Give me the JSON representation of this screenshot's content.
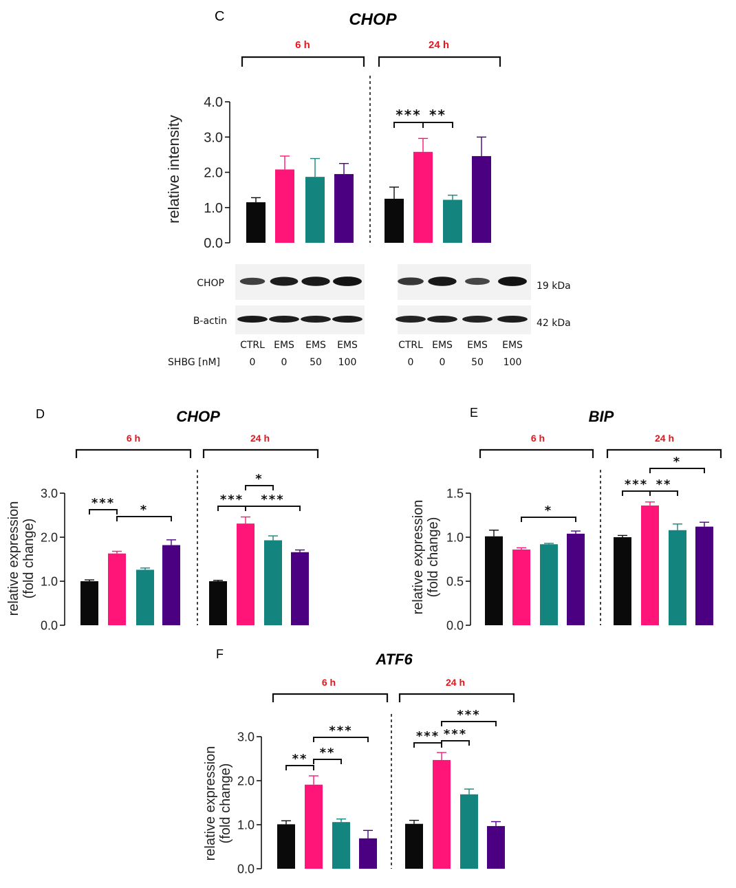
{
  "chart_data": [
    {
      "panel": "C",
      "type": "bar",
      "title": "CHOP",
      "ylabel": "relative intensity",
      "ylim": [
        0,
        4.0
      ],
      "yticks": [
        "0.0",
        "1.0",
        "2.0",
        "3.0",
        "4.0"
      ],
      "groups": [
        {
          "label": "6 h",
          "values": [
            1.15,
            2.08,
            1.87,
            1.95
          ],
          "errors": [
            0.13,
            0.38,
            0.52,
            0.3
          ],
          "colors": [
            "#0a0a0a",
            "#ff1477",
            "#14857e",
            "#4b0082"
          ],
          "significance": []
        },
        {
          "label": "24 h",
          "values": [
            1.25,
            2.58,
            1.22,
            2.46
          ],
          "errors": [
            0.33,
            0.38,
            0.13,
            0.54
          ],
          "colors": [
            "#0a0a0a",
            "#ff1477",
            "#14857e",
            "#4b0082"
          ],
          "significance": [
            {
              "from": 0,
              "to": 1,
              "label": "***"
            },
            {
              "from": 1,
              "to": 2,
              "label": "**"
            }
          ]
        }
      ]
    },
    {
      "panel": "D",
      "type": "bar",
      "title": "CHOP",
      "ylabel": [
        "relative expression",
        "(fold change)"
      ],
      "ylim": [
        0,
        3.0
      ],
      "yticks": [
        "0.0",
        "1.0",
        "2.0",
        "3.0"
      ],
      "groups": [
        {
          "label": "6 h",
          "values": [
            1.0,
            1.63,
            1.26,
            1.82
          ],
          "errors": [
            0.03,
            0.05,
            0.04,
            0.12
          ],
          "colors": [
            "#0a0a0a",
            "#ff1477",
            "#14857e",
            "#4b0082"
          ],
          "significance": [
            {
              "from": 0,
              "to": 1,
              "label": "***"
            },
            {
              "from": 1,
              "to": 3,
              "label": "*"
            }
          ]
        },
        {
          "label": "24 h",
          "values": [
            1.0,
            2.31,
            1.93,
            1.66
          ],
          "errors": [
            0.02,
            0.15,
            0.1,
            0.05
          ],
          "colors": [
            "#0a0a0a",
            "#ff1477",
            "#14857e",
            "#4b0082"
          ],
          "significance": [
            {
              "from": 0,
              "to": 1,
              "label": "***"
            },
            {
              "from": 1,
              "to": 2,
              "label": "*"
            },
            {
              "from": 1,
              "to": 3,
              "label": "***"
            }
          ]
        }
      ]
    },
    {
      "panel": "E",
      "type": "bar",
      "title": "BIP",
      "ylabel": [
        "relative expression",
        "(fold change)"
      ],
      "ylim": [
        0,
        1.5
      ],
      "yticks": [
        "0.0",
        "0.5",
        "1.0",
        "1.5"
      ],
      "groups": [
        {
          "label": "6 h",
          "values": [
            1.01,
            0.86,
            0.92,
            1.04
          ],
          "errors": [
            0.07,
            0.02,
            0.01,
            0.03
          ],
          "colors": [
            "#0a0a0a",
            "#ff1477",
            "#14857e",
            "#4b0082"
          ],
          "significance": [
            {
              "from": 1,
              "to": 3,
              "label": "*"
            }
          ]
        },
        {
          "label": "24 h",
          "values": [
            1.0,
            1.36,
            1.08,
            1.12
          ],
          "errors": [
            0.02,
            0.04,
            0.07,
            0.05
          ],
          "colors": [
            "#0a0a0a",
            "#ff1477",
            "#14857e",
            "#4b0082"
          ],
          "significance": [
            {
              "from": 0,
              "to": 1,
              "label": "***"
            },
            {
              "from": 1,
              "to": 2,
              "label": "**"
            },
            {
              "from": 1,
              "to": 3,
              "label": "*"
            }
          ]
        }
      ]
    },
    {
      "panel": "F",
      "type": "bar",
      "title": "ATF6",
      "ylabel": [
        "relative expression",
        "(fold change)"
      ],
      "ylim": [
        0,
        3.0
      ],
      "yticks": [
        "0.0",
        "1.0",
        "2.0",
        "3.0"
      ],
      "groups": [
        {
          "label": "6 h",
          "values": [
            1.01,
            1.91,
            1.06,
            0.69
          ],
          "errors": [
            0.08,
            0.2,
            0.07,
            0.18
          ],
          "colors": [
            "#0a0a0a",
            "#ff1477",
            "#14857e",
            "#4b0082"
          ],
          "significance": [
            {
              "from": 0,
              "to": 1,
              "label": "**"
            },
            {
              "from": 1,
              "to": 2,
              "label": "**"
            },
            {
              "from": 1,
              "to": 3,
              "label": "***"
            }
          ]
        },
        {
          "label": "24 h",
          "values": [
            1.02,
            2.47,
            1.69,
            0.97
          ],
          "errors": [
            0.08,
            0.17,
            0.12,
            0.1
          ],
          "colors": [
            "#0a0a0a",
            "#ff1477",
            "#14857e",
            "#4b0082"
          ],
          "significance": [
            {
              "from": 0,
              "to": 1,
              "label": "***"
            },
            {
              "from": 1,
              "to": 2,
              "label": "***"
            },
            {
              "from": 1,
              "to": 3,
              "label": "***"
            }
          ]
        }
      ]
    }
  ],
  "blot": {
    "rows": [
      {
        "protein": "CHOP",
        "size": "19 kDa",
        "band_intensity": [
          [
            0.55,
            0.9,
            0.95,
            1.0
          ],
          [
            0.65,
            0.95,
            0.5,
            1.0
          ]
        ]
      },
      {
        "protein": "B-actin",
        "size": "42 kDa",
        "band_intensity": [
          [
            0.95,
            0.9,
            0.88,
            0.92
          ],
          [
            0.85,
            0.88,
            0.85,
            0.9
          ]
        ]
      }
    ],
    "treatments": [
      [
        "CTRL",
        "EMS",
        "EMS",
        "EMS"
      ],
      [
        "CTRL",
        "EMS",
        "EMS",
        "EMS"
      ]
    ],
    "shbg_label": "SHBG [nM]",
    "shbg_values": [
      [
        "0",
        "0",
        "50",
        "100"
      ],
      [
        "0",
        "0",
        "50",
        "100"
      ]
    ]
  },
  "colors": {
    "time_label": "#e8141b",
    "black_bar": "#0a0a0a",
    "pink_bar": "#ff1477",
    "teal_bar": "#14857e",
    "purple_bar": "#4b0082"
  }
}
